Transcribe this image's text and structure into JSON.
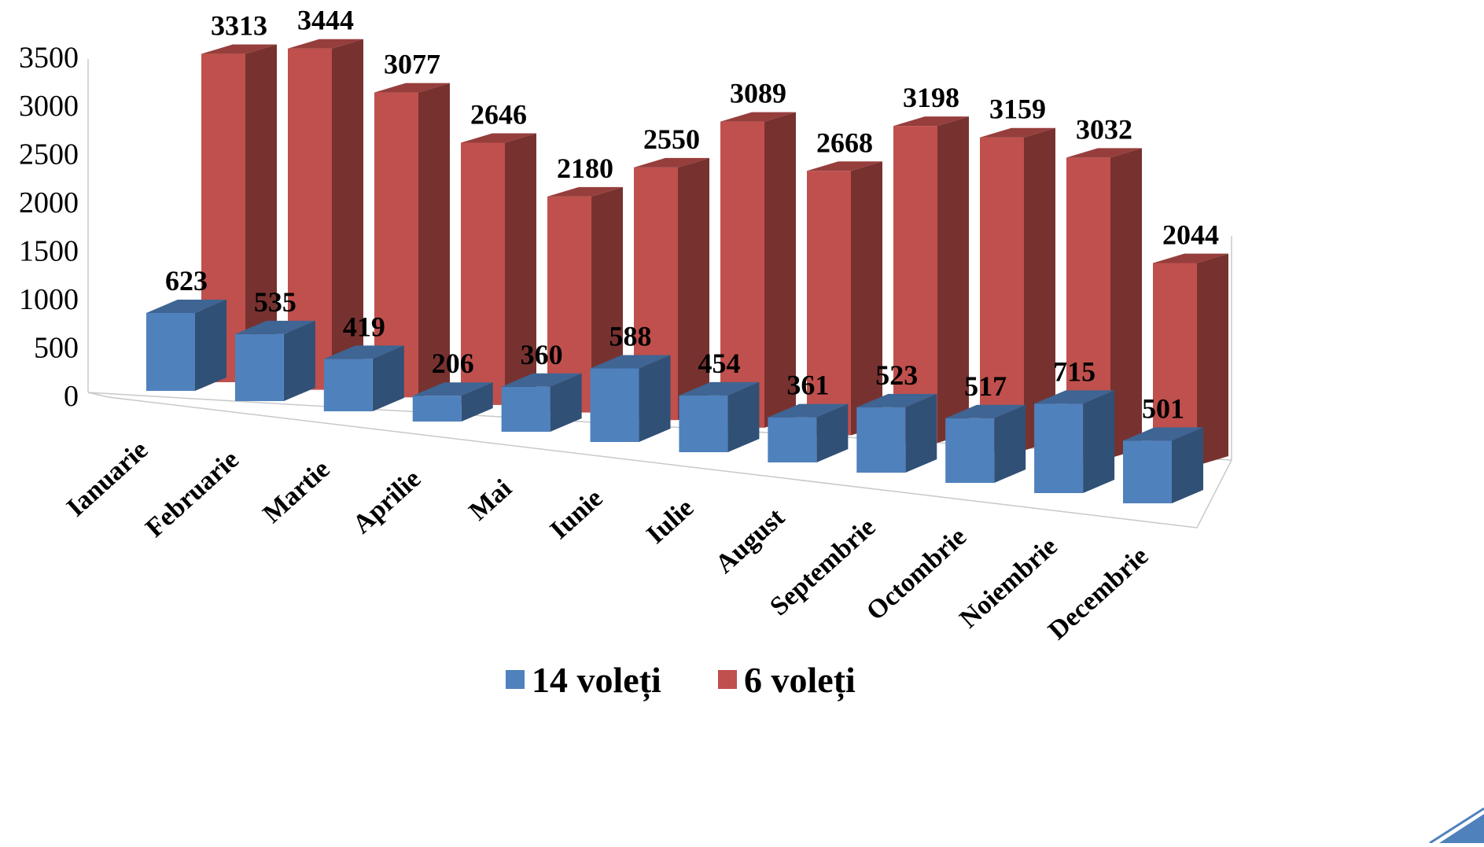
{
  "chart_data": {
    "type": "bar",
    "subtype": "3d-clustered-column",
    "categories": [
      "Ianuarie",
      "Februarie",
      "Martie",
      "Aprilie",
      "Mai",
      "Iunie",
      "Iulie",
      "August",
      "Septembrie",
      "Octombrie",
      "Noiembrie",
      "Decembrie"
    ],
    "series": [
      {
        "name": "14 voleți",
        "color": "#4F81BD",
        "values": [
          623,
          535,
          419,
          206,
          360,
          588,
          454,
          361,
          523,
          517,
          715,
          501
        ]
      },
      {
        "name": "6 voleți",
        "color": "#C0504D",
        "values": [
          3313,
          3444,
          3077,
          2646,
          2180,
          2550,
          3089,
          2668,
          3198,
          3159,
          3032,
          2044
        ]
      }
    ],
    "y_ticks": [
      "0",
      "500",
      "1000",
      "1500",
      "2000",
      "2500",
      "3000",
      "3500"
    ],
    "ylim": [
      0,
      3500
    ],
    "grid": false,
    "legend_position": "bottom",
    "data_labels": true
  },
  "decor": {
    "corner_color": "#4F81BD"
  }
}
